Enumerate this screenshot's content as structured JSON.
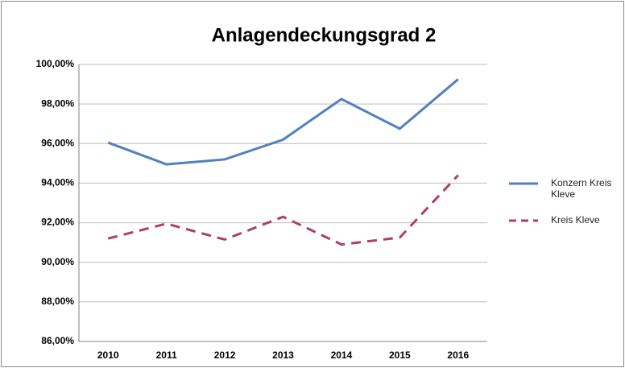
{
  "chart_data": {
    "type": "line",
    "title": "Anlagendeckungsgrad  2",
    "categories": [
      "2010",
      "2011",
      "2012",
      "2013",
      "2014",
      "2015",
      "2016"
    ],
    "series": [
      {
        "name": "Konzern Kreis Kleve",
        "color": "#4f81bd",
        "dash": false,
        "values": [
          96.05,
          94.95,
          95.2,
          96.2,
          98.25,
          96.75,
          99.25
        ]
      },
      {
        "name": "Kreis Kleve",
        "color": "#b03d68",
        "dash": true,
        "values": [
          91.2,
          91.95,
          91.15,
          92.3,
          90.9,
          91.25,
          94.4
        ]
      }
    ],
    "ylim": [
      86,
      100
    ],
    "yticks": [
      {
        "value": 86,
        "label": "86,00%"
      },
      {
        "value": 88,
        "label": "88,00%"
      },
      {
        "value": 90,
        "label": "90,00%"
      },
      {
        "value": 92,
        "label": "92,00%"
      },
      {
        "value": 94,
        "label": "94,00%"
      },
      {
        "value": 96,
        "label": "96,00%"
      },
      {
        "value": 98,
        "label": "98,00%"
      },
      {
        "value": 100,
        "label": "100,00%"
      }
    ],
    "grid": true,
    "legend": "right"
  }
}
